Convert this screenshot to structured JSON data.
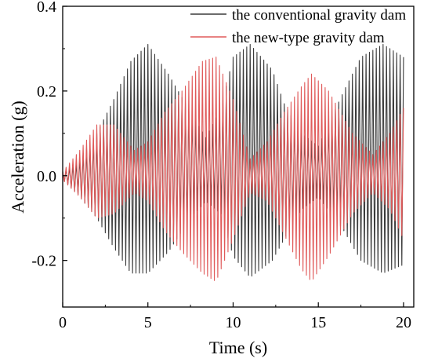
{
  "chart_data": {
    "type": "line",
    "xlabel": "Time (s)",
    "ylabel": "Acceleration (g)",
    "xlim": [
      0,
      20.6
    ],
    "ylim": [
      -0.31,
      0.4
    ],
    "xticks": [
      0,
      5,
      10,
      15,
      20
    ],
    "xtick_labels": [
      "0",
      "5",
      "10",
      "15",
      "20"
    ],
    "yticks": [
      -0.2,
      0.0,
      0.2,
      0.4
    ],
    "ytick_labels": [
      "-0.2",
      "0.0",
      "0.2",
      "0.4"
    ],
    "legend_position": "top-right",
    "series": [
      {
        "name": "the conventional gravity dam",
        "color": "#3a3a3a",
        "oscillation_hz": 5,
        "envelope": {
          "t": [
            0,
            0.8,
            2,
            3,
            4,
            5,
            6.2,
            7.5,
            8.4,
            9.3,
            10,
            11,
            12.3,
            13,
            14,
            15,
            16.5,
            17.5,
            18.8,
            20
          ],
          "upper": [
            0.01,
            0.03,
            0.1,
            0.18,
            0.27,
            0.31,
            0.24,
            0.15,
            0.09,
            0.16,
            0.28,
            0.31,
            0.25,
            0.17,
            0.1,
            0.07,
            0.2,
            0.28,
            0.31,
            0.28
          ],
          "lower": [
            -0.01,
            -0.04,
            -0.1,
            -0.17,
            -0.23,
            -0.23,
            -0.18,
            -0.1,
            -0.06,
            -0.09,
            -0.19,
            -0.24,
            -0.2,
            -0.15,
            -0.08,
            -0.05,
            -0.13,
            -0.2,
            -0.23,
            -0.21
          ]
        }
      },
      {
        "name": "the new-type gravity dam",
        "color": "#e05a5a",
        "oscillation_hz": 5,
        "envelope": {
          "t": [
            0,
            1,
            2,
            3,
            4.2,
            5,
            6,
            7,
            8.2,
            9,
            10,
            11,
            12,
            13,
            14,
            14.6,
            15.6,
            17,
            18.2,
            19.2,
            20
          ],
          "upper": [
            0.01,
            0.06,
            0.12,
            0.12,
            0.06,
            0.08,
            0.15,
            0.2,
            0.27,
            0.28,
            0.18,
            0.04,
            0.08,
            0.15,
            0.21,
            0.24,
            0.2,
            0.1,
            0.05,
            0.1,
            0.16
          ],
          "lower": [
            -0.01,
            -0.05,
            -0.1,
            -0.09,
            -0.04,
            -0.06,
            -0.13,
            -0.18,
            -0.23,
            -0.25,
            -0.15,
            -0.04,
            -0.06,
            -0.14,
            -0.22,
            -0.25,
            -0.19,
            -0.09,
            -0.04,
            -0.08,
            -0.15
          ]
        }
      }
    ]
  }
}
